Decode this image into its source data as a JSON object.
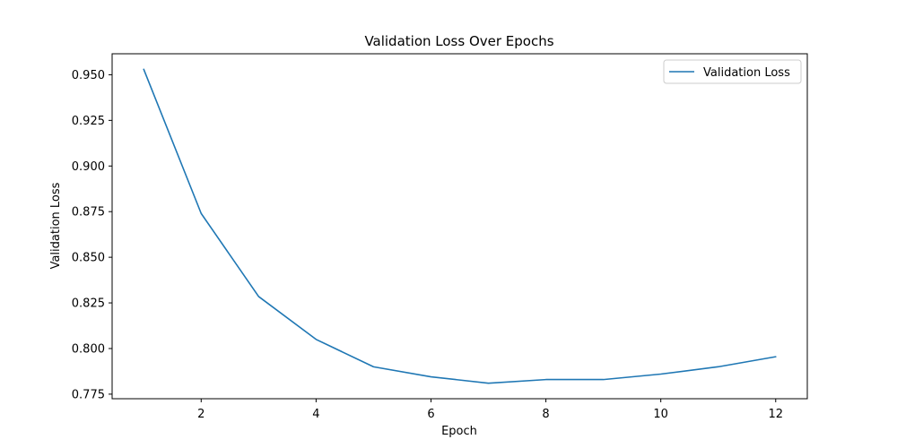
{
  "chart_data": {
    "type": "line",
    "title": "Validation Loss Over Epochs",
    "xlabel": "Epoch",
    "ylabel": "Validation Loss",
    "xlim": [
      0.45,
      12.55
    ],
    "ylim": [
      0.7725,
      0.9615
    ],
    "x_ticks": [
      2,
      4,
      6,
      8,
      10,
      12
    ],
    "y_ticks": [
      0.775,
      0.8,
      0.825,
      0.85,
      0.875,
      0.9,
      0.925,
      0.95
    ],
    "y_tick_format": 3,
    "grid": false,
    "legend_position": "top-right",
    "series": [
      {
        "name": "Validation Loss",
        "color": "#1f77b4",
        "x": [
          1,
          2,
          3,
          4,
          5,
          6,
          7,
          8,
          9,
          10,
          11,
          12
        ],
        "y": [
          0.953,
          0.874,
          0.8285,
          0.805,
          0.79,
          0.7845,
          0.781,
          0.783,
          0.783,
          0.786,
          0.79,
          0.7955
        ]
      }
    ]
  }
}
